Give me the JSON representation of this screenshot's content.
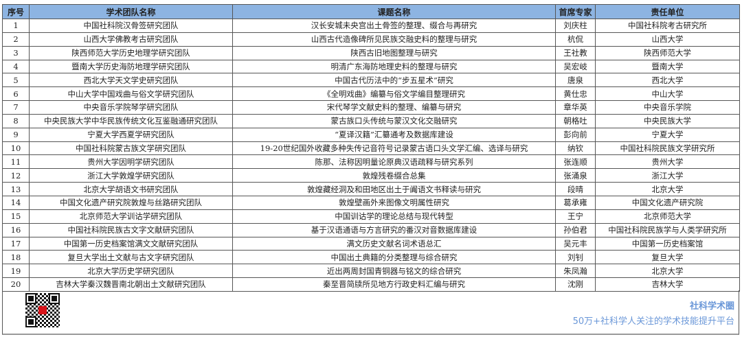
{
  "headers": [
    "序号",
    "学术团队名称",
    "课题名称",
    "首席专家",
    "责任单位"
  ],
  "rows": [
    [
      "1",
      "中国社科院汉骨签研究团队",
      "汉长安城未央宫出土骨签的整理、缀合与再研究",
      "刘庆柱",
      "中国社科院考古研究所"
    ],
    [
      "2",
      "山西大学佛教考古研究团队",
      "山西古代造像碑所见民族交融史料的整理与研究",
      "杭侃",
      "山西大学"
    ],
    [
      "3",
      "陕西师范大学历史地理学研究团队",
      "陕西古旧地图整理与研究",
      "王社教",
      "陕西师范大学"
    ],
    [
      "4",
      "暨南大学历史海防地理学研究团队",
      "明清广东海防地理史料的整理与研究",
      "吴宏岐",
      "暨南大学"
    ],
    [
      "5",
      "西北大学天文学史研究团队",
      "中国古代历法中的“步五星术”研究",
      "唐泉",
      "西北大学"
    ],
    [
      "6",
      "中山大学中国戏曲与俗文学研究团队",
      "《全明戏曲》编纂与俗文学编目整理研究",
      "黄仕忠",
      "中山大学"
    ],
    [
      "7",
      "中央音乐学院琴学研究团队",
      "宋代琴学文献史料的整理、编纂与研究",
      "章华英",
      "中央音乐学院"
    ],
    [
      "8",
      "中央民族大学中华民族传统文化互鉴融通研究团队",
      "蒙古族口头传统与蒙汉文化交融研究",
      "朝格吐",
      "中央民族大学"
    ],
    [
      "9",
      "宁夏大学西夏学研究团队",
      "“夏译汉籍”汇纂通考及数据库建设",
      "彭向前",
      "宁夏大学"
    ],
    [
      "10",
      "中国社科院蒙古族文学研究团队",
      "19-20世纪国外收藏多种失传记音符号记录蒙古语口头文学汇编、选译与研究",
      "纳钦",
      "中国社科院民族文学研究所"
    ],
    [
      "11",
      "贵州大学因明学研究团队",
      "陈那、法称因明量论原典汉语疏释与研究系列",
      "张连顺",
      "贵州大学"
    ],
    [
      "12",
      "浙江大学敦煌学研究团队",
      "敦煌残卷缀合总集",
      "张涌泉",
      "浙江大学"
    ],
    [
      "13",
      "北京大学胡语文书研究团队",
      "敦煌藏经洞及和田地区出土于阗语文书释读与研究",
      "段晴",
      "北京大学"
    ],
    [
      "14",
      "中国文化遗产研究院敦煌与丝路研究团队",
      "敦煌壁画外来图像文明属性研究",
      "葛承雍",
      "中国文化遗产研究院"
    ],
    [
      "15",
      "北京师范大学训诂学研究团队",
      "中国训诂学的理论总结与现代转型",
      "王宁",
      "北京师范大学"
    ],
    [
      "16",
      "中国社科院民族古文字文献研究团队",
      "基于汉语通语与方言研究的番汉对音数据库建设",
      "孙伯君",
      "中国社科院民族学与人类学研究所"
    ],
    [
      "17",
      "中国第一历史档案馆满文文献研究团队",
      "满文历史文献名词术语总汇",
      "吴元丰",
      "中国第一历史档案馆"
    ],
    [
      "18",
      "复旦大学出土文献与古文字研究团队",
      "中国出土典籍的分类整理与综合研究",
      "刘钊",
      "复旦大学"
    ],
    [
      "19",
      "北京大学历史学研究团队",
      "近出两周封国青铜器与铭文的综合研究",
      "朱凤瀚",
      "北京大学"
    ],
    [
      "20",
      "吉林大学秦汉魏晋南北朝出土文献研究团队",
      "秦至晋简牍所见地方行政史料汇编与研究",
      "沈刚",
      "吉林大学"
    ]
  ],
  "footer": {
    "brand": "社科学术圈",
    "slogan": "50万+社科学人关注的学术技能提升平台",
    "qr_icon": "qr-code"
  },
  "colors": {
    "header_bg": "#8db4e2",
    "brand": "#6a97d8"
  }
}
